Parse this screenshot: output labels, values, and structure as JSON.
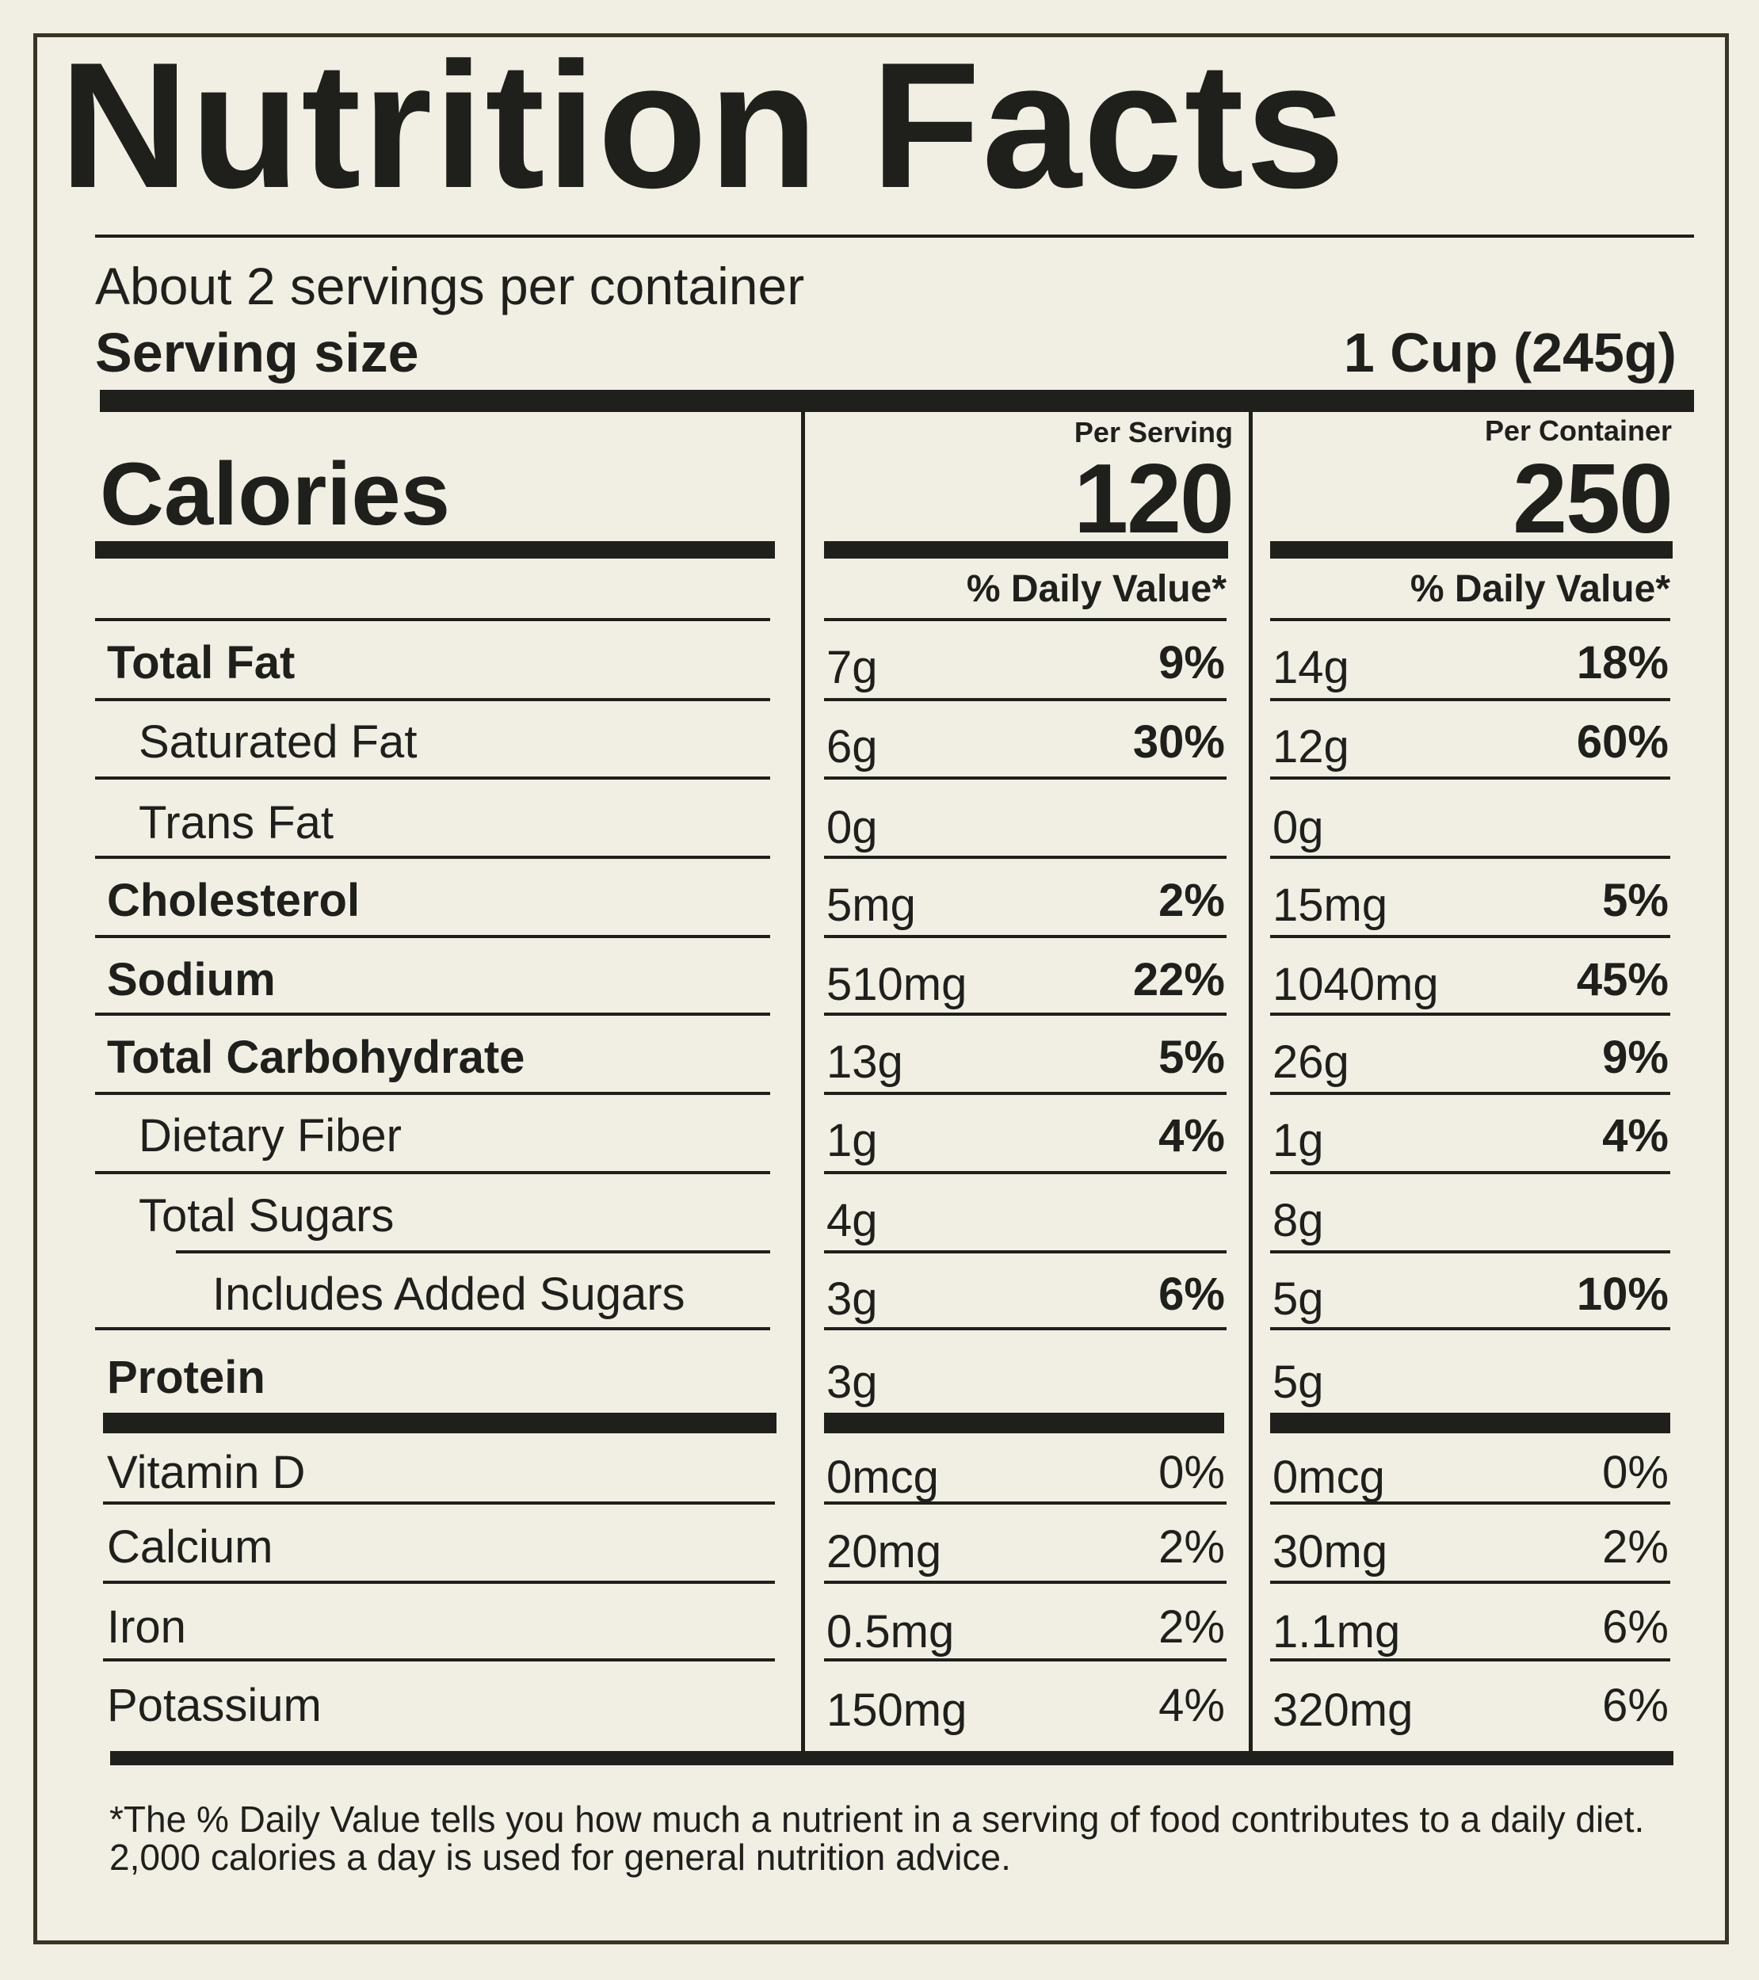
{
  "title": "Nutrition Facts",
  "servings_per_container": "About 2 servings per container",
  "serving_size_label": "Serving size",
  "serving_size_value": "1 Cup (245g)",
  "calories_label": "Calories",
  "columns": [
    {
      "heading": "Per Serving",
      "calories": "120",
      "dv_heading": "% Daily Value*"
    },
    {
      "heading": "Per Container",
      "calories": "250",
      "dv_heading": "% Daily Value*"
    }
  ],
  "nutrients": [
    {
      "name": "Total Fat",
      "bold": true,
      "indent": 0,
      "serving": {
        "amount": "7g",
        "dv": "9%"
      },
      "container": {
        "amount": "14g",
        "dv": "18%"
      }
    },
    {
      "name": "Saturated Fat",
      "bold": false,
      "indent": 1,
      "serving": {
        "amount": "6g",
        "dv": "30%"
      },
      "container": {
        "amount": "12g",
        "dv": "60%"
      }
    },
    {
      "name": "Trans Fat",
      "bold": false,
      "indent": 1,
      "serving": {
        "amount": "0g",
        "dv": ""
      },
      "container": {
        "amount": "0g",
        "dv": ""
      }
    },
    {
      "name": "Cholesterol",
      "bold": true,
      "indent": 0,
      "serving": {
        "amount": "5mg",
        "dv": "2%"
      },
      "container": {
        "amount": "15mg",
        "dv": "5%"
      }
    },
    {
      "name": "Sodium",
      "bold": true,
      "indent": 0,
      "serving": {
        "amount": "510mg",
        "dv": "22%"
      },
      "container": {
        "amount": "1040mg",
        "dv": "45%"
      }
    },
    {
      "name": "Total Carbohydrate",
      "bold": true,
      "indent": 0,
      "serving": {
        "amount": "13g",
        "dv": "5%"
      },
      "container": {
        "amount": "26g",
        "dv": "9%"
      }
    },
    {
      "name": "Dietary Fiber",
      "bold": false,
      "indent": 1,
      "serving": {
        "amount": "1g",
        "dv": "4%"
      },
      "container": {
        "amount": "1g",
        "dv": "4%"
      }
    },
    {
      "name": "Total Sugars",
      "bold": false,
      "indent": 1,
      "serving": {
        "amount": "4g",
        "dv": ""
      },
      "container": {
        "amount": "8g",
        "dv": ""
      }
    },
    {
      "name": "Includes Added Sugars",
      "bold": false,
      "indent": 2,
      "serving": {
        "amount": "3g",
        "dv": "6%"
      },
      "container": {
        "amount": "5g",
        "dv": "10%"
      }
    },
    {
      "name": "Protein",
      "bold": true,
      "indent": 0,
      "serving": {
        "amount": "3g",
        "dv": ""
      },
      "container": {
        "amount": "5g",
        "dv": ""
      }
    }
  ],
  "vitamins": [
    {
      "name": "Vitamin D",
      "serving": {
        "amount": "0mcg",
        "dv": "0%"
      },
      "container": {
        "amount": "0mcg",
        "dv": "0%"
      }
    },
    {
      "name": "Calcium",
      "serving": {
        "amount": "20mg",
        "dv": "2%"
      },
      "container": {
        "amount": "30mg",
        "dv": "2%"
      }
    },
    {
      "name": "Iron",
      "serving": {
        "amount": "0.5mg",
        "dv": "2%"
      },
      "container": {
        "amount": "1.1mg",
        "dv": "6%"
      }
    },
    {
      "name": "Potassium",
      "serving": {
        "amount": "150mg",
        "dv": "4%"
      },
      "container": {
        "amount": "320mg",
        "dv": "6%"
      }
    }
  ],
  "footnote": "*The % Daily Value tells you how much a nutrient in a serving of food contributes to a daily diet. 2,000 calories a day is used for general nutrition advice."
}
